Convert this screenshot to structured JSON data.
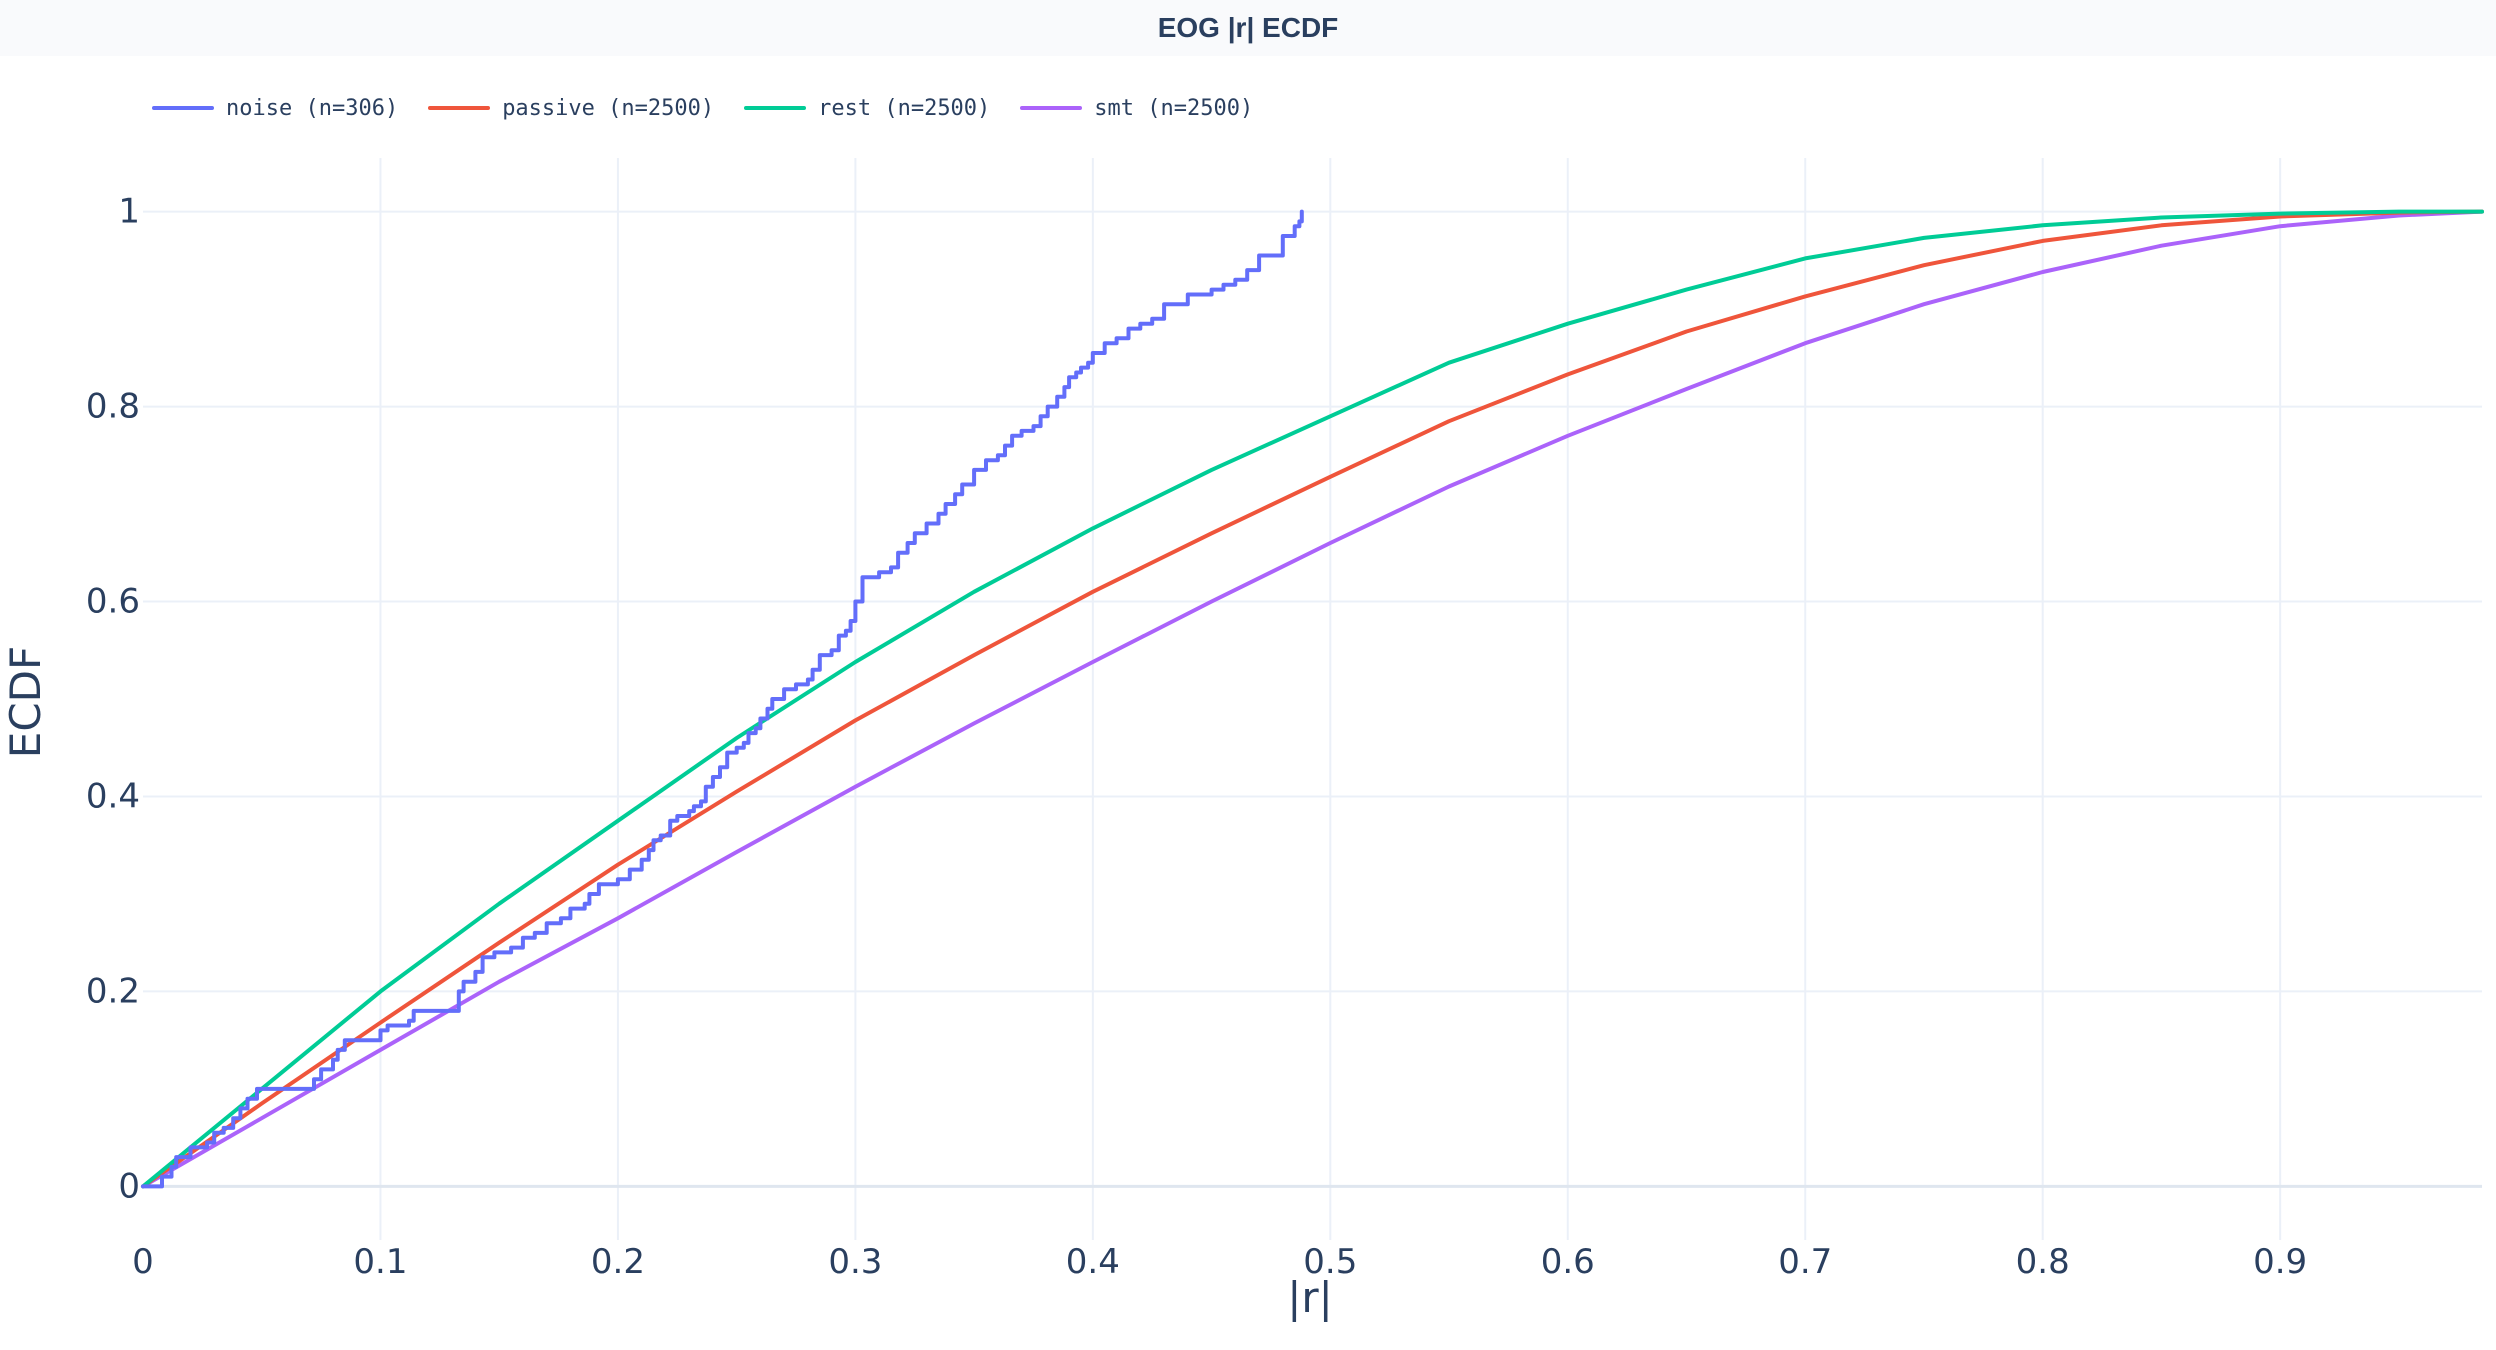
{
  "chart_data": {
    "type": "line",
    "title": "EOG |r| ECDF",
    "xlabel": "|r|",
    "ylabel": "ECDF",
    "xlim": [
      0,
      0.985
    ],
    "ylim": [
      -0.055,
      1.055
    ],
    "grid": true,
    "legend_position": "top-left",
    "x_ticks": [
      0,
      0.1,
      0.2,
      0.3,
      0.4,
      0.5,
      0.6,
      0.7,
      0.8,
      0.9
    ],
    "x_tick_labels": [
      "0",
      "0.1",
      "0.2",
      "0.3",
      "0.4",
      "0.5",
      "0.6",
      "0.7",
      "0.8",
      "0.9"
    ],
    "y_ticks": [
      0,
      0.2,
      0.4,
      0.6,
      0.8,
      1
    ],
    "y_tick_labels": [
      "0",
      "0.2",
      "0.4",
      "0.6",
      "0.8",
      "1"
    ],
    "series": [
      {
        "name": "noise (n=306)",
        "color": "#636efa",
        "step": true,
        "x": [
          0,
          0.008,
          0.012,
          0.014,
          0.02,
          0.027,
          0.03,
          0.034,
          0.038,
          0.041,
          0.044,
          0.048,
          0.055,
          0.065,
          0.072,
          0.075,
          0.08,
          0.082,
          0.085,
          0.1,
          0.103,
          0.112,
          0.114,
          0.133,
          0.135,
          0.14,
          0.143,
          0.148,
          0.155,
          0.16,
          0.165,
          0.17,
          0.176,
          0.18,
          0.186,
          0.188,
          0.192,
          0.2,
          0.205,
          0.21,
          0.213,
          0.215,
          0.218,
          0.222,
          0.225,
          0.23,
          0.232,
          0.235,
          0.237,
          0.24,
          0.243,
          0.246,
          0.25,
          0.253,
          0.255,
          0.258,
          0.26,
          0.263,
          0.265,
          0.27,
          0.275,
          0.28,
          0.282,
          0.285,
          0.29,
          0.293,
          0.296,
          0.298,
          0.3,
          0.303,
          0.31,
          0.315,
          0.318,
          0.322,
          0.325,
          0.33,
          0.335,
          0.338,
          0.342,
          0.345,
          0.35,
          0.355,
          0.36,
          0.363,
          0.366,
          0.37,
          0.375,
          0.378,
          0.381,
          0.385,
          0.388,
          0.39,
          0.393,
          0.395,
          0.398,
          0.4,
          0.405,
          0.41,
          0.415,
          0.42,
          0.425,
          0.43,
          0.44,
          0.45,
          0.455,
          0.46,
          0.465,
          0.47,
          0.48,
          0.485,
          0.487,
          0.488
        ],
        "y": [
          0,
          0.01,
          0.02,
          0.03,
          0.04,
          0.045,
          0.055,
          0.06,
          0.07,
          0.08,
          0.09,
          0.1,
          0.1,
          0.1,
          0.11,
          0.12,
          0.13,
          0.14,
          0.15,
          0.16,
          0.165,
          0.17,
          0.18,
          0.2,
          0.21,
          0.22,
          0.235,
          0.24,
          0.245,
          0.255,
          0.26,
          0.27,
          0.275,
          0.285,
          0.29,
          0.3,
          0.31,
          0.315,
          0.325,
          0.335,
          0.345,
          0.355,
          0.36,
          0.375,
          0.38,
          0.385,
          0.39,
          0.395,
          0.41,
          0.42,
          0.43,
          0.445,
          0.45,
          0.455,
          0.465,
          0.47,
          0.48,
          0.49,
          0.5,
          0.51,
          0.515,
          0.52,
          0.53,
          0.545,
          0.55,
          0.565,
          0.57,
          0.58,
          0.6,
          0.625,
          0.63,
          0.635,
          0.65,
          0.66,
          0.67,
          0.68,
          0.69,
          0.7,
          0.71,
          0.72,
          0.735,
          0.745,
          0.75,
          0.76,
          0.77,
          0.775,
          0.78,
          0.79,
          0.8,
          0.81,
          0.82,
          0.83,
          0.835,
          0.84,
          0.845,
          0.855,
          0.865,
          0.87,
          0.88,
          0.885,
          0.89,
          0.905,
          0.915,
          0.92,
          0.925,
          0.93,
          0.94,
          0.955,
          0.975,
          0.985,
          0.99,
          1.0
        ]
      },
      {
        "name": "passive (n=2500)",
        "color": "#ef553b",
        "step": false,
        "x": [
          0,
          0.05,
          0.1,
          0.15,
          0.2,
          0.25,
          0.3,
          0.35,
          0.4,
          0.45,
          0.5,
          0.55,
          0.6,
          0.65,
          0.7,
          0.75,
          0.8,
          0.85,
          0.9,
          0.95,
          0.985
        ],
        "y": [
          0,
          0.085,
          0.168,
          0.25,
          0.33,
          0.405,
          0.478,
          0.545,
          0.61,
          0.67,
          0.728,
          0.785,
          0.833,
          0.877,
          0.913,
          0.945,
          0.97,
          0.986,
          0.995,
          0.999,
          1.0
        ]
      },
      {
        "name": "rest (n=2500)",
        "color": "#00cc96",
        "step": false,
        "x": [
          0,
          0.05,
          0.1,
          0.15,
          0.2,
          0.25,
          0.3,
          0.35,
          0.4,
          0.45,
          0.5,
          0.55,
          0.6,
          0.65,
          0.7,
          0.75,
          0.8,
          0.85,
          0.9,
          0.95,
          0.985
        ],
        "y": [
          0,
          0.1,
          0.2,
          0.29,
          0.375,
          0.46,
          0.538,
          0.61,
          0.675,
          0.735,
          0.79,
          0.845,
          0.885,
          0.92,
          0.952,
          0.973,
          0.986,
          0.994,
          0.998,
          1.0,
          1.0
        ]
      },
      {
        "name": "smt (n=2500)",
        "color": "#ab63fa",
        "step": false,
        "x": [
          0,
          0.05,
          0.1,
          0.15,
          0.2,
          0.25,
          0.3,
          0.35,
          0.4,
          0.45,
          0.5,
          0.55,
          0.6,
          0.65,
          0.7,
          0.75,
          0.8,
          0.85,
          0.9,
          0.95,
          0.985
        ],
        "y": [
          0,
          0.07,
          0.14,
          0.21,
          0.275,
          0.343,
          0.41,
          0.475,
          0.538,
          0.6,
          0.66,
          0.718,
          0.77,
          0.818,
          0.865,
          0.905,
          0.938,
          0.965,
          0.985,
          0.996,
          1.0
        ]
      }
    ]
  }
}
